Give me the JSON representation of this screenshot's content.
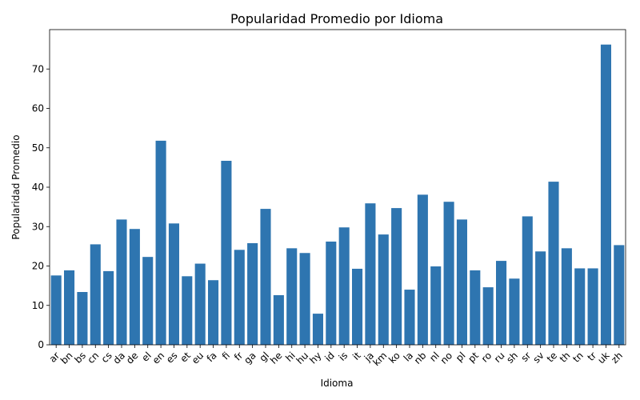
{
  "chart_data": {
    "type": "bar",
    "title": "Popularidad Promedio por Idioma",
    "xlabel": "Idioma",
    "ylabel": "Popularidad Promedio",
    "ylim": [
      0,
      80
    ],
    "yticks": [
      0,
      10,
      20,
      30,
      40,
      50,
      60,
      70
    ],
    "grid": false,
    "legend": "none",
    "bar_color": "#2e75b0",
    "categories": [
      "ar",
      "bn",
      "bs",
      "cn",
      "cs",
      "da",
      "de",
      "el",
      "en",
      "es",
      "et",
      "eu",
      "fa",
      "fi",
      "fr",
      "ga",
      "gl",
      "he",
      "hi",
      "hu",
      "hy",
      "id",
      "is",
      "it",
      "ja",
      "km",
      "ko",
      "la",
      "nb",
      "nl",
      "no",
      "pl",
      "pt",
      "ro",
      "ru",
      "sh",
      "sr",
      "sv",
      "te",
      "th",
      "tn",
      "tr",
      "uk",
      "zh"
    ],
    "values": [
      17.6,
      18.9,
      13.4,
      25.5,
      18.7,
      31.8,
      29.4,
      22.3,
      51.8,
      30.8,
      17.4,
      20.6,
      16.4,
      46.7,
      24.1,
      25.8,
      34.5,
      12.6,
      24.5,
      23.3,
      7.9,
      26.2,
      29.8,
      19.3,
      35.9,
      28.0,
      34.7,
      14.0,
      38.1,
      19.9,
      36.3,
      31.8,
      18.9,
      14.6,
      21.3,
      16.8,
      32.6,
      23.7,
      41.4,
      24.5,
      19.4,
      19.4,
      76.2,
      25.3
    ]
  }
}
